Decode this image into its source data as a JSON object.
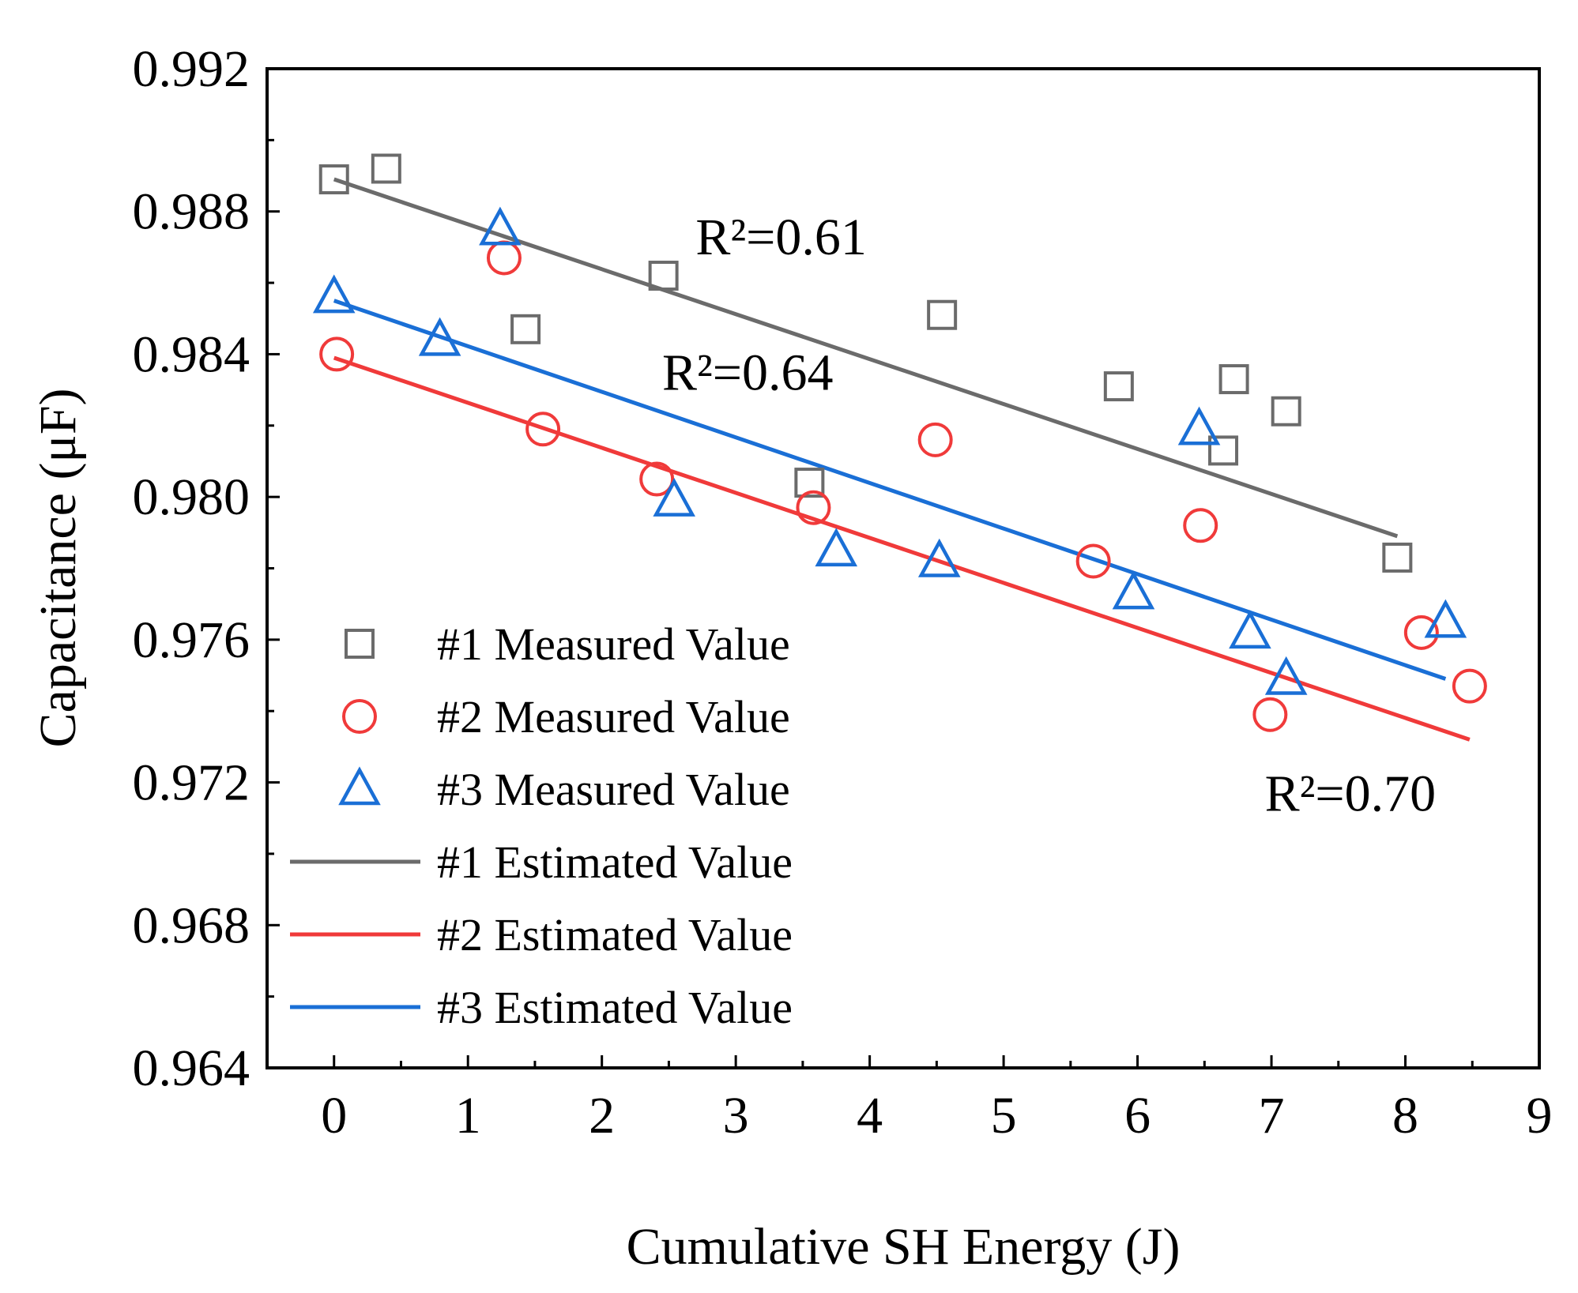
{
  "chart_data": {
    "type": "scatter",
    "title": "",
    "xlabel": "Cumulative SH Energy (J)",
    "ylabel": "Capacitance (μF)",
    "xlim": [
      -0.5,
      9
    ],
    "ylim": [
      0.964,
      0.992
    ],
    "x_ticks": [
      "0",
      "1",
      "2",
      "3",
      "4",
      "5",
      "6",
      "7",
      "8",
      "9"
    ],
    "y_ticks": [
      "0.964",
      "0.968",
      "0.972",
      "0.976",
      "0.980",
      "0.984",
      "0.988",
      "0.992"
    ],
    "grid": false,
    "legend_position": "lower-left",
    "series": [
      {
        "name": "#1 Measured Value",
        "marker": "square",
        "color": "#6b6b6b",
        "x": [
          0.0,
          0.39,
          1.43,
          2.46,
          3.55,
          4.54,
          5.86,
          6.64,
          6.72,
          7.11,
          7.94
        ],
        "y": [
          0.9889,
          0.9892,
          0.9847,
          0.9862,
          0.9804,
          0.9851,
          0.9831,
          0.9813,
          0.9833,
          0.9824,
          0.9783
        ]
      },
      {
        "name": "#2 Measured Value",
        "marker": "circle",
        "color": "#f03a3a",
        "x": [
          0.02,
          1.27,
          1.56,
          2.41,
          3.58,
          4.49,
          5.67,
          6.47,
          6.99,
          8.12,
          8.48
        ],
        "y": [
          0.984,
          0.9867,
          0.9819,
          0.9805,
          0.9797,
          0.9816,
          0.9782,
          0.9792,
          0.9739,
          0.9762,
          0.9747
        ]
      },
      {
        "name": "#3 Measured Value",
        "marker": "triangle",
        "color": "#1a6fd6",
        "x": [
          0.0,
          0.79,
          1.24,
          2.54,
          3.75,
          4.52,
          5.97,
          6.46,
          6.84,
          7.11,
          8.3
        ],
        "y": [
          0.9856,
          0.9844,
          0.9875,
          0.9799,
          0.9785,
          0.9782,
          0.9773,
          0.9819,
          0.9762,
          0.9749,
          0.9765
        ]
      },
      {
        "name": "#1 Estimated Value",
        "line": true,
        "color": "#6b6b6b",
        "x": [
          0.0,
          7.94
        ],
        "y": [
          0.9889,
          0.9789
        ]
      },
      {
        "name": "#2 Estimated Value",
        "line": true,
        "color": "#f03a3a",
        "x": [
          0.0,
          8.48
        ],
        "y": [
          0.9839,
          0.9732
        ]
      },
      {
        "name": "#3 Estimated Value",
        "line": true,
        "color": "#1a6fd6",
        "x": [
          0.0,
          8.3
        ],
        "y": [
          0.9855,
          0.9749
        ]
      }
    ],
    "annotations": [
      {
        "text": "R²=0.61",
        "x": 2.7,
        "y": 0.9868
      },
      {
        "text": "R²=0.64",
        "x": 2.45,
        "y": 0.983
      },
      {
        "text": "R²=0.70",
        "x": 6.95,
        "y": 0.9712
      }
    ]
  }
}
